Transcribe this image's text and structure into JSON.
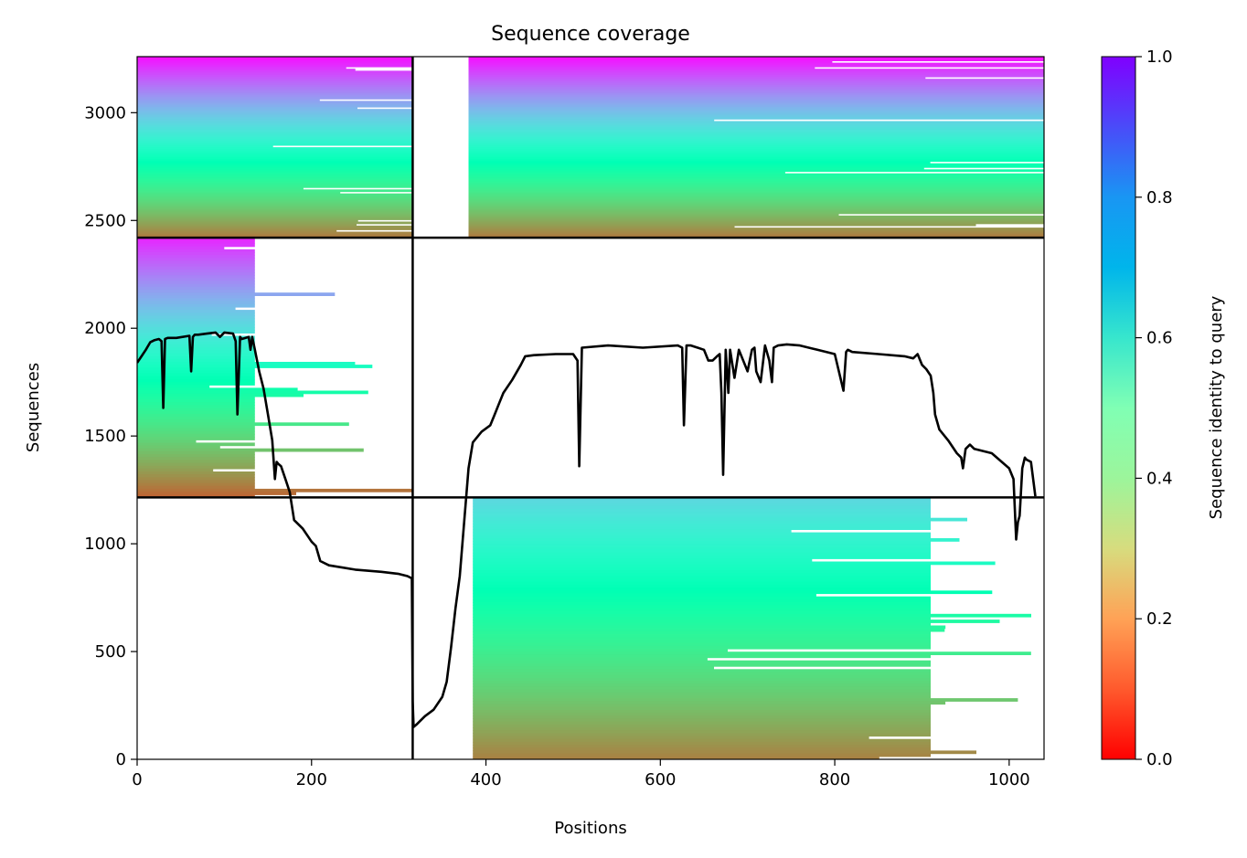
{
  "chart_data": {
    "type": "heatmap",
    "title": "Sequence coverage",
    "xlabel": "Positions",
    "ylabel": "Sequences",
    "xlim": [
      0,
      1040
    ],
    "ylim": [
      0,
      3260
    ],
    "x_ticks": [
      0,
      200,
      400,
      600,
      800,
      1000
    ],
    "y_ticks": [
      0,
      500,
      1000,
      1500,
      2000,
      2500,
      3000
    ],
    "colorbar": {
      "label": "Sequence identity to query",
      "range": [
        0,
        1
      ],
      "ticks": [
        0.0,
        0.2,
        0.4,
        0.6,
        0.8,
        1.0
      ],
      "tick_labels": [
        "0.0",
        "0.2",
        "0.4",
        "0.6",
        "0.8",
        "1.0"
      ],
      "colormap": "rainbow_r"
    },
    "grid": false,
    "blocks": [
      {
        "x": [
          0,
          316
        ],
        "y": [
          1215,
          2420
        ],
        "dense_x": [
          0,
          135
        ],
        "sparse_x_end": 330,
        "identity_top": 0.95,
        "identity_bottom": 0.13
      },
      {
        "x": [
          316,
          1040
        ],
        "y": [
          0,
          1215
        ],
        "dense_x": [
          385,
          910
        ],
        "sparse_x_end": 1040,
        "identity_top": 0.68,
        "identity_bottom": 0.17
      },
      {
        "x": [
          0,
          316
        ],
        "y": [
          2420,
          3260
        ],
        "dense_x": [
          0,
          316
        ],
        "sparse_x_end": 316,
        "identity_top": 0.98,
        "identity_bottom": 0.16
      },
      {
        "x": [
          316,
          1040
        ],
        "y": [
          2420,
          3260
        ],
        "dense_x": [
          380,
          1040
        ],
        "sparse_x_end": 1040,
        "identity_top": 0.98,
        "identity_bottom": 0.16
      }
    ],
    "divider_x": [
      316
    ],
    "divider_y": [
      1215,
      2420
    ],
    "coverage_line": {
      "name": "coverage",
      "color": "#000000",
      "x": [
        0,
        5,
        10,
        15,
        20,
        25,
        28,
        30,
        32,
        35,
        45,
        60,
        62,
        64,
        66,
        70,
        80,
        90,
        95,
        100,
        110,
        113,
        115,
        118,
        120,
        128,
        130,
        132,
        135,
        140,
        145,
        150,
        155,
        158,
        160,
        162,
        165,
        170,
        175,
        180,
        190,
        195,
        200,
        205,
        210,
        220,
        250,
        280,
        300,
        310,
        315,
        316,
        317,
        320,
        330,
        340,
        350,
        355,
        360,
        365,
        370,
        375,
        380,
        385,
        395,
        405,
        410,
        415,
        420,
        430,
        440,
        445,
        455,
        480,
        500,
        505,
        507,
        510,
        540,
        580,
        620,
        625,
        627,
        630,
        635,
        650,
        655,
        660,
        665,
        668,
        670,
        672,
        675,
        678,
        680,
        685,
        690,
        700,
        705,
        708,
        710,
        715,
        720,
        725,
        728,
        730,
        735,
        745,
        760,
        780,
        800,
        810,
        813,
        815,
        820,
        850,
        880,
        890,
        895,
        900,
        905,
        910,
        913,
        915,
        920,
        930,
        940,
        945,
        947,
        950,
        955,
        960,
        980,
        1000,
        1005,
        1008,
        1010,
        1012,
        1015,
        1018,
        1020,
        1025,
        1030,
        1035,
        1040
      ],
      "y": [
        1840,
        1870,
        1900,
        1935,
        1945,
        1950,
        1940,
        1630,
        1950,
        1955,
        1955,
        1965,
        1800,
        1960,
        1970,
        1970,
        1975,
        1980,
        1960,
        1980,
        1975,
        1940,
        1600,
        1960,
        1950,
        1960,
        1900,
        1960,
        1900,
        1800,
        1720,
        1600,
        1480,
        1300,
        1380,
        1370,
        1360,
        1300,
        1240,
        1110,
        1070,
        1040,
        1010,
        990,
        920,
        900,
        880,
        870,
        860,
        850,
        840,
        270,
        150,
        160,
        200,
        230,
        290,
        360,
        520,
        700,
        850,
        1100,
        1350,
        1470,
        1520,
        1550,
        1600,
        1650,
        1700,
        1760,
        1830,
        1870,
        1875,
        1880,
        1880,
        1850,
        1360,
        1910,
        1920,
        1910,
        1920,
        1910,
        1550,
        1920,
        1920,
        1900,
        1850,
        1850,
        1870,
        1880,
        1700,
        1320,
        1900,
        1700,
        1900,
        1770,
        1900,
        1800,
        1900,
        1910,
        1800,
        1750,
        1920,
        1850,
        1750,
        1910,
        1920,
        1925,
        1920,
        1900,
        1880,
        1710,
        1890,
        1900,
        1890,
        1880,
        1870,
        1860,
        1880,
        1830,
        1810,
        1780,
        1700,
        1600,
        1530,
        1480,
        1420,
        1400,
        1350,
        1440,
        1460,
        1440,
        1420,
        1350,
        1300,
        1020,
        1100,
        1130,
        1350,
        1400,
        1390,
        1380,
        1220
      ]
    }
  }
}
